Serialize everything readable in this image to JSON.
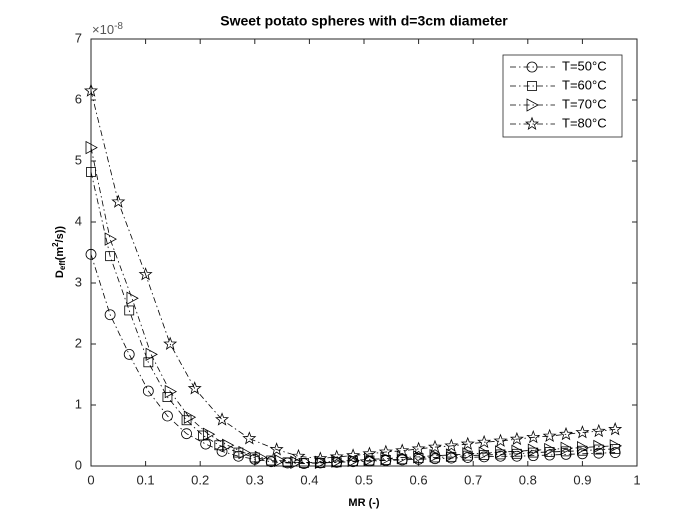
{
  "chart_data": {
    "type": "line",
    "title": "Sweet potato spheres with d=3cm diameter",
    "x_label": "MR (-)",
    "y_label": {
      "base": "D",
      "sub": "eff",
      "pre": "(m",
      "sup": "2",
      "post": "/s))"
    },
    "y_multiplier": {
      "base": "×10",
      "exponent": "-8"
    },
    "xlim": [
      0,
      1
    ],
    "xticks": [
      0,
      0.1,
      0.2,
      0.3,
      0.4,
      0.5,
      0.6,
      0.7,
      0.8,
      0.9,
      1
    ],
    "ylim": [
      0,
      7
    ],
    "yticks": [
      0,
      1,
      2,
      3,
      4,
      5,
      6,
      7
    ],
    "legend_position": "top-right",
    "series": [
      {
        "name": "T=50°C",
        "color": "#000000",
        "marker": "circle",
        "x": [
          0,
          0.035,
          0.07,
          0.105,
          0.14,
          0.175,
          0.21,
          0.24,
          0.27,
          0.3,
          0.33,
          0.36,
          0.39,
          0.42,
          0.45,
          0.48,
          0.51,
          0.54,
          0.57,
          0.6,
          0.63,
          0.66,
          0.69,
          0.72,
          0.75,
          0.78,
          0.81,
          0.84,
          0.87,
          0.9,
          0.93,
          0.96
        ],
        "values": [
          3.47,
          2.48,
          1.83,
          1.23,
          0.82,
          0.53,
          0.36,
          0.24,
          0.16,
          0.11,
          0.07,
          0.05,
          0.04,
          0.05,
          0.06,
          0.07,
          0.08,
          0.09,
          0.1,
          0.11,
          0.12,
          0.13,
          0.14,
          0.15,
          0.16,
          0.16,
          0.17,
          0.18,
          0.19,
          0.2,
          0.21,
          0.22
        ]
      },
      {
        "name": "T=60°C",
        "color": "#000000",
        "marker": "square",
        "x": [
          0,
          0.035,
          0.07,
          0.105,
          0.14,
          0.175,
          0.205,
          0.235,
          0.27,
          0.3,
          0.33,
          0.36,
          0.39,
          0.42,
          0.45,
          0.48,
          0.51,
          0.54,
          0.57,
          0.6,
          0.63,
          0.66,
          0.69,
          0.72,
          0.75,
          0.78,
          0.81,
          0.84,
          0.87,
          0.9,
          0.93,
          0.96
        ],
        "values": [
          4.82,
          3.44,
          2.55,
          1.7,
          1.13,
          0.75,
          0.5,
          0.34,
          0.22,
          0.14,
          0.09,
          0.06,
          0.05,
          0.05,
          0.06,
          0.08,
          0.09,
          0.1,
          0.11,
          0.13,
          0.14,
          0.15,
          0.17,
          0.18,
          0.19,
          0.2,
          0.22,
          0.23,
          0.24,
          0.25,
          0.27,
          0.28
        ]
      },
      {
        "name": "T=70°C",
        "color": "#000000",
        "marker": "triangle-right",
        "x": [
          0,
          0.035,
          0.075,
          0.11,
          0.145,
          0.18,
          0.215,
          0.25,
          0.28,
          0.31,
          0.345,
          0.375,
          0.42,
          0.45,
          0.48,
          0.51,
          0.54,
          0.57,
          0.6,
          0.63,
          0.66,
          0.69,
          0.72,
          0.75,
          0.78,
          0.81,
          0.84,
          0.87,
          0.9,
          0.93,
          0.96
        ],
        "values": [
          5.22,
          3.72,
          2.75,
          1.83,
          1.22,
          0.8,
          0.52,
          0.34,
          0.22,
          0.14,
          0.09,
          0.06,
          0.06,
          0.08,
          0.09,
          0.11,
          0.12,
          0.14,
          0.15,
          0.17,
          0.18,
          0.2,
          0.21,
          0.23,
          0.24,
          0.26,
          0.27,
          0.29,
          0.3,
          0.32,
          0.33
        ]
      },
      {
        "name": "T=80°C",
        "color": "#000000",
        "marker": "star",
        "x": [
          0,
          0.05,
          0.1,
          0.145,
          0.19,
          0.24,
          0.29,
          0.34,
          0.38,
          0.42,
          0.45,
          0.48,
          0.51,
          0.54,
          0.57,
          0.6,
          0.63,
          0.66,
          0.69,
          0.72,
          0.75,
          0.78,
          0.81,
          0.84,
          0.87,
          0.9,
          0.93,
          0.96
        ],
        "values": [
          6.15,
          4.33,
          3.14,
          2.0,
          1.27,
          0.76,
          0.45,
          0.27,
          0.16,
          0.12,
          0.15,
          0.17,
          0.2,
          0.23,
          0.25,
          0.28,
          0.31,
          0.33,
          0.36,
          0.39,
          0.41,
          0.44,
          0.47,
          0.49,
          0.52,
          0.55,
          0.57,
          0.6
        ]
      }
    ]
  }
}
